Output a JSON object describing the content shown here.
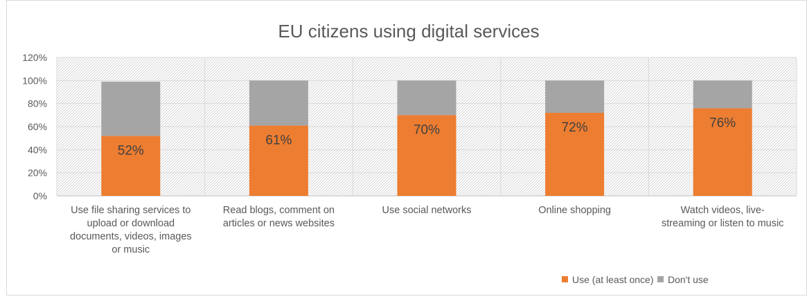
{
  "chart_data": {
    "type": "bar",
    "stacked": true,
    "title": "EU citizens using digital services",
    "categories": [
      [
        "Use file sharing services to",
        "upload or download",
        "documents, videos, images",
        "or music"
      ],
      [
        "Read blogs, comment on",
        "articles or news websites"
      ],
      [
        "Use social networks"
      ],
      [
        "Online shopping"
      ],
      [
        "Watch videos, live-",
        "streaming or listen to music"
      ]
    ],
    "series": [
      {
        "name": "Use (at least once)",
        "values": [
          52,
          61,
          70,
          72,
          76
        ],
        "color": "#ED7D31",
        "data_labels": [
          "52%",
          "61%",
          "70%",
          "72%",
          "76%"
        ]
      },
      {
        "name": "Don't use",
        "values": [
          47,
          39,
          30,
          28,
          24
        ],
        "color": "#A5A5A5"
      }
    ],
    "y_ticks": [
      "0%",
      "20%",
      "40%",
      "60%",
      "80%",
      "100%",
      "120%"
    ],
    "y_tick_values": [
      0,
      20,
      40,
      60,
      80,
      100,
      120
    ],
    "ylim": [
      0,
      120
    ],
    "grid": true,
    "legend_position": "bottom-right",
    "plot_background": "hatched"
  }
}
